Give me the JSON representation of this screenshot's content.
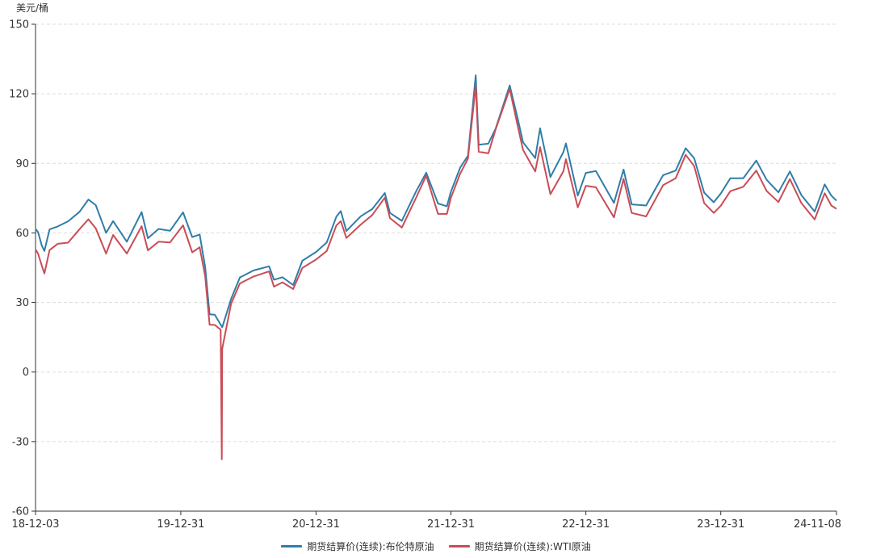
{
  "chart_data": {
    "type": "line",
    "y_unit": "美元/桶",
    "ylim": [
      -60,
      150
    ],
    "yticks": [
      150,
      120,
      90,
      60,
      30,
      0,
      -30,
      -60
    ],
    "x_range": [
      "2018-12-03",
      "2024-11-08"
    ],
    "x_ticks": [
      {
        "label": "18-12-03",
        "date": "2018-12-03"
      },
      {
        "label": "19-12-31",
        "date": "2019-12-31"
      },
      {
        "label": "20-12-31",
        "date": "2020-12-31"
      },
      {
        "label": "21-12-31",
        "date": "2021-12-31"
      },
      {
        "label": "22-12-31",
        "date": "2022-12-31"
      },
      {
        "label": "23-12-31",
        "date": "2023-12-31"
      },
      {
        "label": "24-11-08",
        "date": "2024-11-08"
      }
    ],
    "grid": {
      "horizontal": true,
      "style": "dashed"
    },
    "legend_position": "bottom-center",
    "series": [
      {
        "name": "期货结算价(连续):布伦特原油",
        "color": "#2f7ea8",
        "points": [
          [
            "2018-12-03",
            61.7
          ],
          [
            "2018-12-10",
            60.3
          ],
          [
            "2018-12-20",
            54.5
          ],
          [
            "2018-12-27",
            52.2
          ],
          [
            "2019-01-10",
            61.5
          ],
          [
            "2019-02-01",
            62.8
          ],
          [
            "2019-03-01",
            65.0
          ],
          [
            "2019-04-01",
            69.1
          ],
          [
            "2019-04-25",
            74.4
          ],
          [
            "2019-05-15",
            72.0
          ],
          [
            "2019-06-12",
            60.0
          ],
          [
            "2019-07-01",
            65.1
          ],
          [
            "2019-08-07",
            56.2
          ],
          [
            "2019-09-16",
            69.0
          ],
          [
            "2019-10-03",
            57.7
          ],
          [
            "2019-11-01",
            61.7
          ],
          [
            "2019-12-02",
            60.9
          ],
          [
            "2020-01-06",
            68.9
          ],
          [
            "2020-01-31",
            58.2
          ],
          [
            "2020-02-20",
            59.3
          ],
          [
            "2020-03-06",
            45.3
          ],
          [
            "2020-03-18",
            24.9
          ],
          [
            "2020-04-01",
            24.7
          ],
          [
            "2020-04-21",
            19.3
          ],
          [
            "2020-05-15",
            31.5
          ],
          [
            "2020-06-08",
            40.8
          ],
          [
            "2020-07-15",
            43.8
          ],
          [
            "2020-08-26",
            45.6
          ],
          [
            "2020-09-08",
            39.8
          ],
          [
            "2020-10-01",
            40.9
          ],
          [
            "2020-10-30",
            37.5
          ],
          [
            "2020-11-24",
            48.0
          ],
          [
            "2020-12-31",
            51.8
          ],
          [
            "2021-01-29",
            55.9
          ],
          [
            "2021-02-24",
            67.0
          ],
          [
            "2021-03-08",
            69.4
          ],
          [
            "2021-03-23",
            60.8
          ],
          [
            "2021-05-01",
            67.2
          ],
          [
            "2021-06-01",
            70.3
          ],
          [
            "2021-07-05",
            77.2
          ],
          [
            "2021-07-19",
            68.6
          ],
          [
            "2021-08-20",
            65.2
          ],
          [
            "2021-09-28",
            78.0
          ],
          [
            "2021-10-25",
            86.0
          ],
          [
            "2021-11-26",
            72.7
          ],
          [
            "2021-12-20",
            71.5
          ],
          [
            "2021-12-31",
            77.8
          ],
          [
            "2022-01-25",
            88.2
          ],
          [
            "2022-02-15",
            93.3
          ],
          [
            "2022-03-08",
            127.98
          ],
          [
            "2022-03-16",
            98.0
          ],
          [
            "2022-04-11",
            98.5
          ],
          [
            "2022-05-01",
            105.0
          ],
          [
            "2022-06-08",
            123.6
          ],
          [
            "2022-06-30",
            109.0
          ],
          [
            "2022-07-14",
            99.1
          ],
          [
            "2022-08-16",
            92.3
          ],
          [
            "2022-08-29",
            105.1
          ],
          [
            "2022-09-26",
            84.1
          ],
          [
            "2022-10-31",
            94.8
          ],
          [
            "2022-11-07",
            98.6
          ],
          [
            "2022-12-09",
            76.1
          ],
          [
            "2022-12-31",
            85.9
          ],
          [
            "2023-01-27",
            86.7
          ],
          [
            "2023-03-17",
            72.97
          ],
          [
            "2023-04-12",
            87.3
          ],
          [
            "2023-05-04",
            72.3
          ],
          [
            "2023-06-12",
            71.8
          ],
          [
            "2023-07-28",
            84.9
          ],
          [
            "2023-08-31",
            86.9
          ],
          [
            "2023-09-27",
            96.55
          ],
          [
            "2023-10-20",
            92.2
          ],
          [
            "2023-11-16",
            77.4
          ],
          [
            "2023-12-12",
            73.2
          ],
          [
            "2023-12-31",
            77.0
          ],
          [
            "2024-01-26",
            83.6
          ],
          [
            "2024-03-01",
            83.6
          ],
          [
            "2024-04-05",
            91.2
          ],
          [
            "2024-05-03",
            82.9
          ],
          [
            "2024-06-04",
            77.5
          ],
          [
            "2024-07-05",
            86.5
          ],
          [
            "2024-08-05",
            76.3
          ],
          [
            "2024-09-10",
            69.2
          ],
          [
            "2024-10-07",
            80.9
          ],
          [
            "2024-10-25",
            76.1
          ],
          [
            "2024-11-08",
            73.9
          ]
        ]
      },
      {
        "name": "期货结算价(连续):WTI原油",
        "color": "#c94d57",
        "points": [
          [
            "2018-12-03",
            52.9
          ],
          [
            "2018-12-10",
            51.0
          ],
          [
            "2018-12-20",
            45.9
          ],
          [
            "2018-12-27",
            42.5
          ],
          [
            "2019-01-10",
            52.6
          ],
          [
            "2019-02-01",
            55.3
          ],
          [
            "2019-03-01",
            55.8
          ],
          [
            "2019-04-01",
            61.6
          ],
          [
            "2019-04-25",
            65.9
          ],
          [
            "2019-05-15",
            62.0
          ],
          [
            "2019-06-12",
            51.1
          ],
          [
            "2019-07-01",
            59.1
          ],
          [
            "2019-08-07",
            51.1
          ],
          [
            "2019-09-16",
            62.9
          ],
          [
            "2019-10-03",
            52.5
          ],
          [
            "2019-11-01",
            56.2
          ],
          [
            "2019-12-02",
            55.9
          ],
          [
            "2020-01-06",
            63.3
          ],
          [
            "2020-01-31",
            51.6
          ],
          [
            "2020-02-20",
            53.8
          ],
          [
            "2020-03-06",
            41.3
          ],
          [
            "2020-03-18",
            20.4
          ],
          [
            "2020-04-01",
            20.3
          ],
          [
            "2020-04-17",
            18.3
          ],
          [
            "2020-04-20",
            -37.6
          ],
          [
            "2020-04-21",
            10.0
          ],
          [
            "2020-05-15",
            29.4
          ],
          [
            "2020-06-08",
            38.2
          ],
          [
            "2020-07-15",
            41.2
          ],
          [
            "2020-08-26",
            43.4
          ],
          [
            "2020-09-08",
            36.8
          ],
          [
            "2020-10-01",
            38.7
          ],
          [
            "2020-10-30",
            35.8
          ],
          [
            "2020-11-24",
            44.9
          ],
          [
            "2020-12-31",
            48.5
          ],
          [
            "2021-01-29",
            52.2
          ],
          [
            "2021-02-24",
            63.2
          ],
          [
            "2021-03-08",
            65.1
          ],
          [
            "2021-03-23",
            57.8
          ],
          [
            "2021-05-01",
            63.6
          ],
          [
            "2021-06-01",
            67.7
          ],
          [
            "2021-07-05",
            75.2
          ],
          [
            "2021-07-19",
            66.4
          ],
          [
            "2021-08-20",
            62.3
          ],
          [
            "2021-09-28",
            75.3
          ],
          [
            "2021-10-25",
            84.7
          ],
          [
            "2021-11-26",
            68.2
          ],
          [
            "2021-12-20",
            68.2
          ],
          [
            "2021-12-31",
            75.2
          ],
          [
            "2022-01-25",
            85.6
          ],
          [
            "2022-02-15",
            92.1
          ],
          [
            "2022-03-08",
            123.7
          ],
          [
            "2022-03-16",
            95.0
          ],
          [
            "2022-04-11",
            94.3
          ],
          [
            "2022-05-01",
            104.7
          ],
          [
            "2022-06-08",
            122.1
          ],
          [
            "2022-06-30",
            105.8
          ],
          [
            "2022-07-14",
            95.8
          ],
          [
            "2022-08-16",
            86.5
          ],
          [
            "2022-08-29",
            97.0
          ],
          [
            "2022-09-26",
            76.7
          ],
          [
            "2022-10-31",
            86.5
          ],
          [
            "2022-11-07",
            91.8
          ],
          [
            "2022-12-09",
            71.0
          ],
          [
            "2022-12-31",
            80.3
          ],
          [
            "2023-01-27",
            79.7
          ],
          [
            "2023-03-17",
            66.7
          ],
          [
            "2023-04-12",
            83.3
          ],
          [
            "2023-05-04",
            68.6
          ],
          [
            "2023-06-12",
            67.1
          ],
          [
            "2023-07-28",
            80.6
          ],
          [
            "2023-08-31",
            83.6
          ],
          [
            "2023-09-27",
            93.7
          ],
          [
            "2023-10-20",
            88.8
          ],
          [
            "2023-11-16",
            72.9
          ],
          [
            "2023-12-12",
            68.6
          ],
          [
            "2023-12-31",
            71.7
          ],
          [
            "2024-01-26",
            78.0
          ],
          [
            "2024-03-01",
            79.9
          ],
          [
            "2024-04-05",
            86.9
          ],
          [
            "2024-05-03",
            78.1
          ],
          [
            "2024-06-04",
            73.3
          ],
          [
            "2024-07-05",
            83.2
          ],
          [
            "2024-08-05",
            72.9
          ],
          [
            "2024-09-10",
            65.8
          ],
          [
            "2024-10-07",
            77.1
          ],
          [
            "2024-10-25",
            71.8
          ],
          [
            "2024-11-08",
            70.4
          ]
        ]
      }
    ]
  }
}
